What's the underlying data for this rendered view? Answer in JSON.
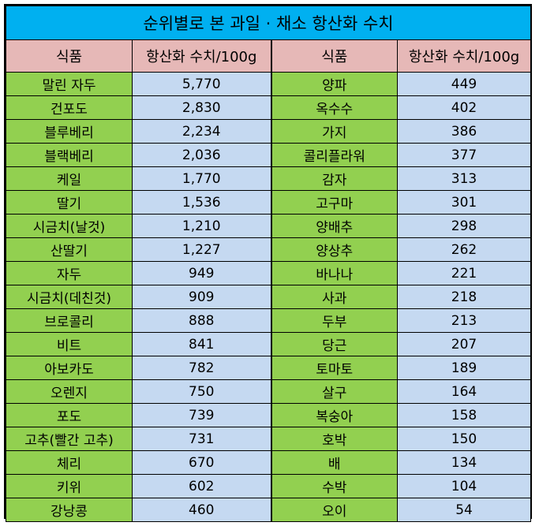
{
  "title": "순위별로 본 과일 · 채소 항산화 수치",
  "headers": {
    "food_left": "식품",
    "value_left": "항산화 수치/100g",
    "food_right": "식품",
    "value_right": "항산화 수치/100g"
  },
  "rows": [
    {
      "food_left": "말린 자두",
      "value_left": "5,770",
      "food_right": "양파",
      "value_right": "449"
    },
    {
      "food_left": "건포도",
      "value_left": "2,830",
      "food_right": "옥수수",
      "value_right": "402"
    },
    {
      "food_left": "블루베리",
      "value_left": "2,234",
      "food_right": "가지",
      "value_right": "386"
    },
    {
      "food_left": "블랙베리",
      "value_left": "2,036",
      "food_right": "콜리플라워",
      "value_right": "377"
    },
    {
      "food_left": "케일",
      "value_left": "1,770",
      "food_right": "감자",
      "value_right": "313"
    },
    {
      "food_left": "딸기",
      "value_left": "1,536",
      "food_right": "고구마",
      "value_right": "301"
    },
    {
      "food_left": "시금치(날것)",
      "value_left": "1,210",
      "food_right": "양배추",
      "value_right": "298"
    },
    {
      "food_left": "산딸기",
      "value_left": "1,227",
      "food_right": "양상추",
      "value_right": "262"
    },
    {
      "food_left": "자두",
      "value_left": "949",
      "food_right": "바나나",
      "value_right": "221"
    },
    {
      "food_left": "시금치(데친것)",
      "value_left": "909",
      "food_right": "사과",
      "value_right": "218"
    },
    {
      "food_left": "브로콜리",
      "value_left": "888",
      "food_right": "두부",
      "value_right": "213"
    },
    {
      "food_left": "비트",
      "value_left": "841",
      "food_right": "당근",
      "value_right": "207"
    },
    {
      "food_left": "아보카도",
      "value_left": "782",
      "food_right": "토마토",
      "value_right": "189"
    },
    {
      "food_left": "오렌지",
      "value_left": "750",
      "food_right": "살구",
      "value_right": "164"
    },
    {
      "food_left": "포도",
      "value_left": "739",
      "food_right": "복숭아",
      "value_right": "158"
    },
    {
      "food_left": "고추(빨간 고추)",
      "value_left": "731",
      "food_right": "호박",
      "value_right": "150"
    },
    {
      "food_left": "체리",
      "value_left": "670",
      "food_right": "배",
      "value_right": "134"
    },
    {
      "food_left": "키위",
      "value_left": "602",
      "food_right": "수박",
      "value_right": "104"
    },
    {
      "food_left": "강낭콩",
      "value_left": "460",
      "food_right": "오이",
      "value_right": "54"
    }
  ],
  "colors": {
    "title_bg": "#00b0f0",
    "header_bg": "#e6b8b7",
    "food_bg": "#92d050",
    "value_bg": "#c5d9f1"
  }
}
